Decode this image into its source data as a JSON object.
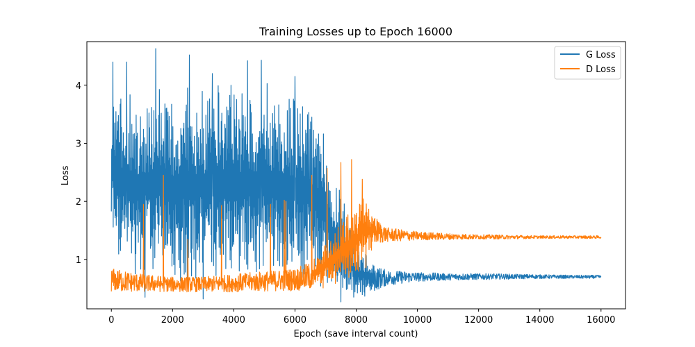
{
  "chart_data": {
    "type": "line",
    "title": "Training Losses up to Epoch 16000",
    "xlabel": "Epoch (save interval count)",
    "ylabel": "Loss",
    "xlim": [
      -800,
      16800
    ],
    "ylim": [
      0.15,
      4.75
    ],
    "xticks": [
      0,
      2000,
      4000,
      6000,
      8000,
      10000,
      12000,
      14000,
      16000
    ],
    "yticks": [
      1,
      2,
      3,
      4
    ],
    "grid": false,
    "legend_position": "top-right",
    "series": [
      {
        "name": "G Loss",
        "color": "#1f77b4",
        "x": [
          0,
          250,
          500,
          1000,
          1500,
          2000,
          2500,
          3000,
          3500,
          4000,
          4500,
          5000,
          5500,
          6000,
          6500,
          7000,
          7200,
          7500,
          8000,
          8300,
          8600,
          9000,
          10000,
          11000,
          12000,
          13000,
          14000,
          15000,
          16000
        ],
        "lower": [
          1.1,
          0.75,
          0.7,
          0.65,
          0.6,
          0.55,
          0.55,
          0.5,
          0.55,
          0.55,
          0.6,
          0.55,
          0.55,
          0.6,
          0.55,
          0.5,
          0.45,
          0.3,
          0.32,
          0.35,
          0.45,
          0.55,
          0.62,
          0.64,
          0.65,
          0.66,
          0.67,
          0.67,
          0.67
        ],
        "upper": [
          4.4,
          3.8,
          3.9,
          3.9,
          4.0,
          3.9,
          4.1,
          4.0,
          4.1,
          4.0,
          4.0,
          4.1,
          3.9,
          3.8,
          3.7,
          3.2,
          2.4,
          2.2,
          1.2,
          1.1,
          0.9,
          0.82,
          0.78,
          0.76,
          0.76,
          0.75,
          0.74,
          0.73,
          0.73
        ],
        "peaks": [
          {
            "x": 50,
            "y": 4.4
          },
          {
            "x": 500,
            "y": 4.4
          },
          {
            "x": 1450,
            "y": 4.63
          },
          {
            "x": 2550,
            "y": 4.52
          },
          {
            "x": 3300,
            "y": 4.2
          },
          {
            "x": 4450,
            "y": 4.42
          },
          {
            "x": 4900,
            "y": 4.43
          },
          {
            "x": 6000,
            "y": 4.15
          },
          {
            "x": 6550,
            "y": 3.45
          },
          {
            "x": 3000,
            "y": 0.32
          },
          {
            "x": 1100,
            "y": 0.35
          },
          {
            "x": 7500,
            "y": 0.27
          }
        ]
      },
      {
        "name": "D Loss",
        "color": "#ff7f0e",
        "x": [
          0,
          1000,
          2000,
          3000,
          4000,
          5000,
          6000,
          6500,
          7000,
          7500,
          8000,
          8300,
          8600,
          9000,
          10000,
          11000,
          12000,
          13000,
          14000,
          15000,
          16000
        ],
        "lower": [
          0.44,
          0.44,
          0.44,
          0.44,
          0.44,
          0.45,
          0.46,
          0.47,
          0.5,
          0.55,
          0.65,
          0.8,
          1.25,
          1.3,
          1.33,
          1.34,
          1.35,
          1.35,
          1.36,
          1.36,
          1.36
        ],
        "upper": [
          0.85,
          0.75,
          0.7,
          0.7,
          0.75,
          0.8,
          0.85,
          0.95,
          1.3,
          1.7,
          2.0,
          2.2,
          1.75,
          1.55,
          1.48,
          1.45,
          1.43,
          1.42,
          1.41,
          1.41,
          1.41
        ],
        "peaks": [
          {
            "x": 1700,
            "y": 2.45
          },
          {
            "x": 1050,
            "y": 1.95
          },
          {
            "x": 5650,
            "y": 2.02
          },
          {
            "x": 5700,
            "y": 2.0
          },
          {
            "x": 5200,
            "y": 1.95
          },
          {
            "x": 6550,
            "y": 2.45
          },
          {
            "x": 7050,
            "y": 2.57
          },
          {
            "x": 7500,
            "y": 2.67
          },
          {
            "x": 7850,
            "y": 2.72
          },
          {
            "x": 8200,
            "y": 2.38
          },
          {
            "x": 3600,
            "y": 1.93
          },
          {
            "x": 2500,
            "y": 1.35
          }
        ]
      }
    ]
  }
}
